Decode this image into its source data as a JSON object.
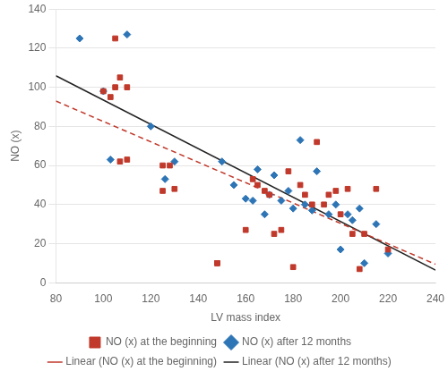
{
  "chart_data": {
    "type": "scatter",
    "xlabel": "LV mass index",
    "ylabel": "NO (x)",
    "xlim": [
      80,
      240
    ],
    "ylim": [
      0,
      140
    ],
    "xticks": [
      80,
      100,
      120,
      140,
      160,
      180,
      200,
      220,
      240
    ],
    "yticks": [
      0,
      20,
      40,
      60,
      80,
      100,
      120,
      140
    ],
    "grid": "y",
    "legend": "bottom",
    "series": [
      {
        "name": "NO (x) at the beginning",
        "type": "scatter",
        "color": "#C0392B",
        "marker": "square",
        "x": [
          100,
          103,
          105,
          105,
          107,
          107,
          110,
          110,
          125,
          125,
          128,
          130,
          148,
          148,
          160,
          163,
          165,
          168,
          170,
          172,
          175,
          178,
          180,
          183,
          185,
          188,
          190,
          193,
          195,
          198,
          200,
          203,
          205,
          208,
          210,
          215,
          220
        ],
        "values": [
          98,
          95,
          100,
          125,
          105,
          62,
          63,
          100,
          60,
          47,
          60,
          48,
          10,
          10,
          27,
          53,
          50,
          47,
          45,
          25,
          27,
          57,
          8,
          50,
          45,
          40,
          72,
          40,
          45,
          47,
          35,
          48,
          25,
          7,
          25,
          48,
          17
        ]
      },
      {
        "name": "NO (x) after 12 months",
        "type": "scatter",
        "color": "#2E75B6",
        "marker": "diamond",
        "x": [
          90,
          100,
          103,
          110,
          120,
          126,
          130,
          150,
          155,
          160,
          163,
          165,
          168,
          170,
          172,
          175,
          178,
          180,
          183,
          185,
          188,
          190,
          195,
          198,
          200,
          203,
          205,
          208,
          210,
          215,
          220
        ],
        "values": [
          125,
          98,
          63,
          127,
          80,
          53,
          62,
          62,
          50,
          43,
          42,
          58,
          35,
          45,
          55,
          42,
          47,
          38,
          73,
          40,
          37,
          57,
          35,
          40,
          17,
          35,
          32,
          38,
          10,
          30,
          15
        ]
      },
      {
        "name": "Linear (NO (x) at the beginning)",
        "type": "line",
        "color": "#C0392B",
        "line_style": "dashed",
        "x": [
          80,
          240
        ],
        "values": [
          92.95,
          9.47
        ]
      },
      {
        "name": "Linear (NO (x) after 12 months)",
        "type": "line",
        "color": "#222222",
        "line_style": "solid",
        "x": [
          80,
          240
        ],
        "values": [
          105.91,
          6.51
        ]
      }
    ]
  }
}
